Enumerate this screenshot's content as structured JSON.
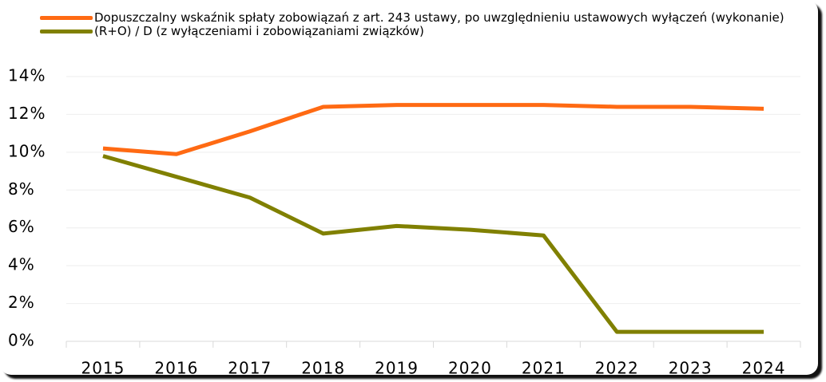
{
  "chart_data": {
    "type": "line",
    "categories": [
      "2015",
      "2016",
      "2017",
      "2018",
      "2019",
      "2020",
      "2021",
      "2022",
      "2023",
      "2024"
    ],
    "series": [
      {
        "name": "Dopuszczalny wskaźnik spłaty zobowiązań z art. 243 ustawy, po uwzględnieniu ustawowych wyłączeń (wykonanie)",
        "color": "#ff6a13",
        "values": [
          10.2,
          9.9,
          11.1,
          12.4,
          12.5,
          12.5,
          12.5,
          12.4,
          12.4,
          12.3
        ]
      },
      {
        "name": "(R+O) / D (z wyłączeniami i zobowiązaniami związków)",
        "color": "#808000",
        "values": [
          9.8,
          8.7,
          7.6,
          5.7,
          6.1,
          5.9,
          5.6,
          0.5,
          0.5,
          0.5
        ]
      }
    ],
    "ylim": [
      0,
      14
    ],
    "yticks": [
      {
        "value": 0,
        "label": "0%"
      },
      {
        "value": 2,
        "label": "2%"
      },
      {
        "value": 4,
        "label": "4%"
      },
      {
        "value": 6,
        "label": "6%"
      },
      {
        "value": 8,
        "label": "8%"
      },
      {
        "value": 10,
        "label": "10%"
      },
      {
        "value": 12,
        "label": "12%"
      },
      {
        "value": 14,
        "label": "14%"
      }
    ],
    "grid": true,
    "legend": "top-left"
  }
}
